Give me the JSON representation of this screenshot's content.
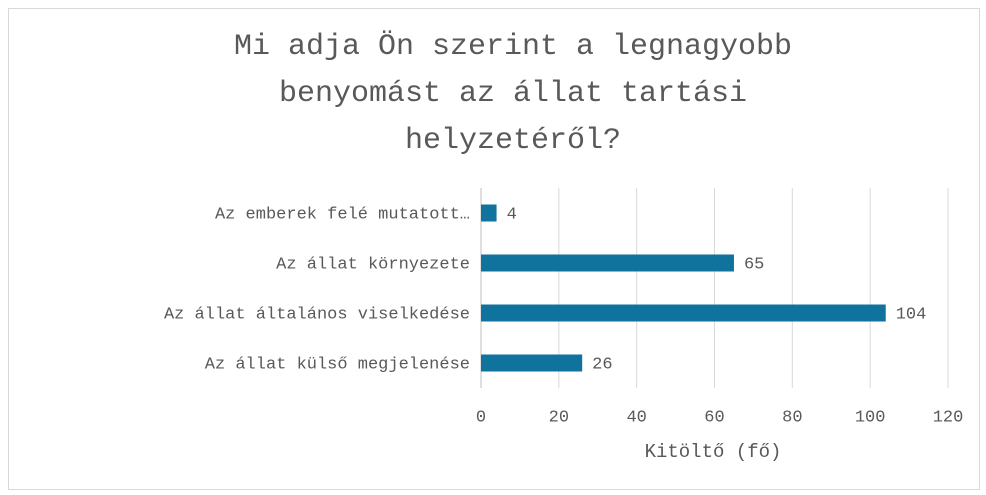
{
  "chart_data": {
    "type": "bar",
    "orientation": "horizontal",
    "title": "Mi adja Ön szerint a legnagyobb benyomást az állat tartási helyzetéről?",
    "x_label": "Kitöltő (fő)",
    "categories": [
      "Az emberek felé mutatott…",
      "Az állat környezete",
      "Az állat általános viselkedése",
      "Az állat külső megjelenése"
    ],
    "values": [
      4,
      65,
      104,
      26
    ],
    "color": "#10739e",
    "xlim": [
      0,
      120
    ],
    "xticks": [
      0,
      20,
      40,
      60,
      80,
      100,
      120
    ],
    "grid": true
  }
}
